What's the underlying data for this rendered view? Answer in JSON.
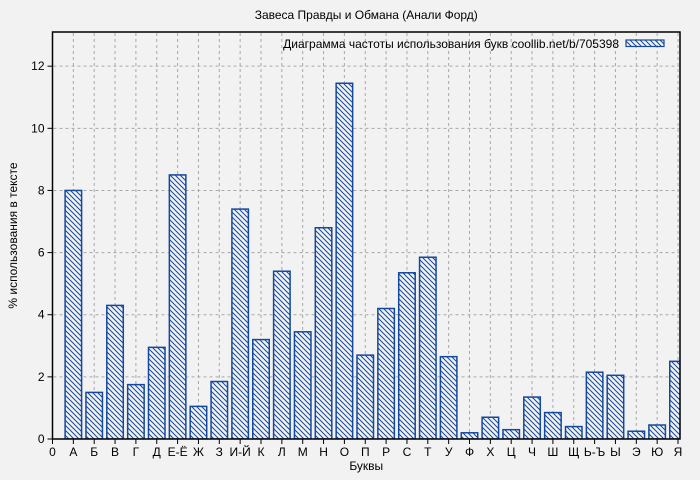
{
  "colors": {
    "bar": "#14489c",
    "grid": "#a8a8a8",
    "axis": "#000000",
    "background": "#f2f2f2",
    "text": "#000000"
  },
  "chart_data": {
    "type": "bar",
    "title": "Завеса Правды и Обмана (Анали Форд)",
    "legend": "Диаграмма частоты использования букв coollib.net/b/705398",
    "legend_position": "top-right-inside",
    "xlabel": "Буквы",
    "ylabel": "% использования в тексте",
    "x_origin_label": "0",
    "ylim": [
      0,
      13.1
    ],
    "y_ticks": [
      0,
      2,
      4,
      6,
      8,
      10,
      12
    ],
    "grid": true,
    "bar_style": "blue-diagonal-hatch-outline",
    "categories": [
      "А",
      "Б",
      "В",
      "Г",
      "Д",
      "Е-Ё",
      "Ж",
      "З",
      "И-Й",
      "К",
      "Л",
      "М",
      "Н",
      "О",
      "П",
      "Р",
      "С",
      "Т",
      "У",
      "Ф",
      "Х",
      "Ц",
      "Ч",
      "Ш",
      "Щ",
      "Ь-Ъ",
      "Ы",
      "Э",
      "Ю",
      "Я"
    ],
    "values": [
      8.0,
      1.5,
      4.3,
      1.75,
      2.95,
      8.5,
      1.05,
      1.85,
      7.4,
      3.2,
      5.4,
      3.45,
      6.8,
      11.45,
      2.7,
      4.2,
      5.35,
      5.85,
      2.65,
      0.2,
      0.7,
      0.3,
      1.35,
      0.85,
      0.4,
      2.15,
      2.05,
      0.25,
      0.45,
      2.5
    ]
  }
}
